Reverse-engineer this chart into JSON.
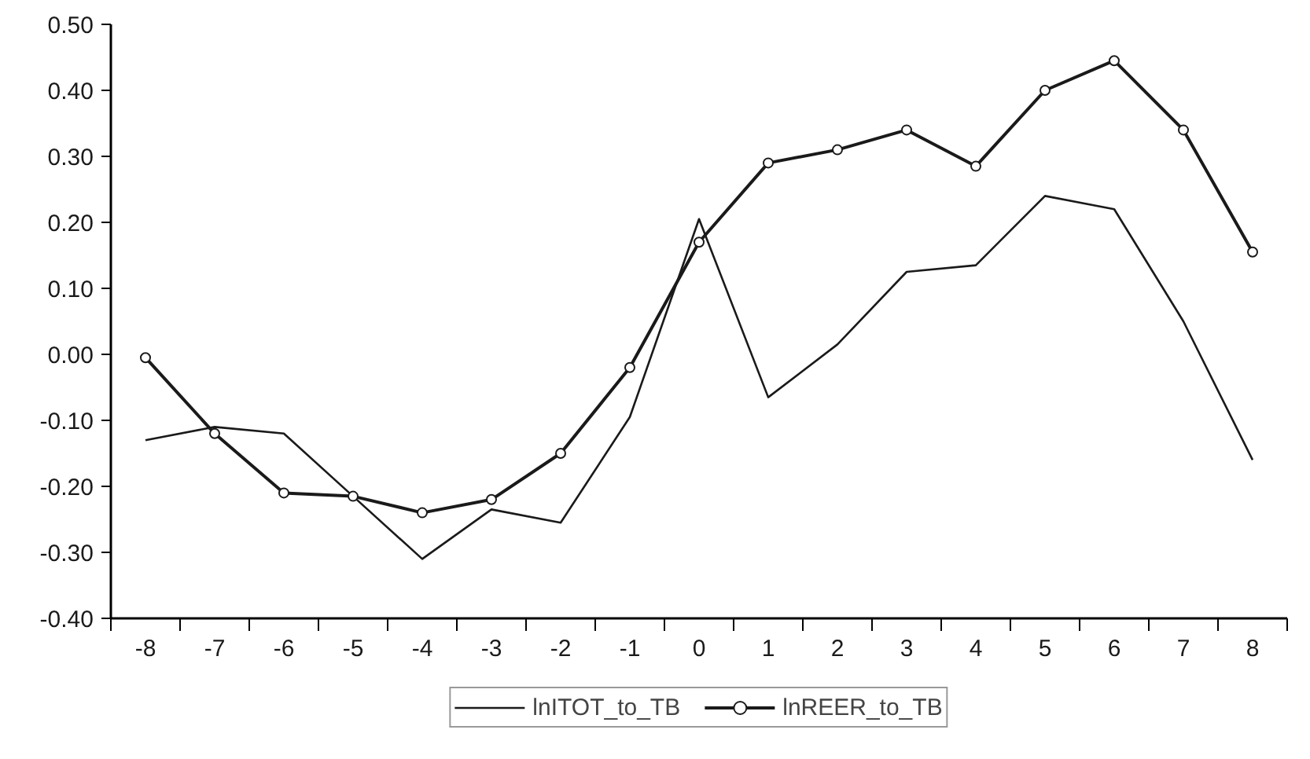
{
  "chart_data": {
    "type": "line",
    "x": [
      -8,
      -7,
      -6,
      -5,
      -4,
      -3,
      -2,
      -1,
      0,
      1,
      2,
      3,
      4,
      5,
      6,
      7,
      8
    ],
    "series": [
      {
        "name": "lnITOT_to_TB",
        "color": "#1a1a1a",
        "marker": "none",
        "values": [
          -0.13,
          -0.11,
          -0.12,
          -0.215,
          -0.31,
          -0.235,
          -0.255,
          -0.095,
          0.205,
          -0.065,
          0.015,
          0.125,
          0.135,
          0.24,
          0.22,
          0.05,
          -0.16
        ]
      },
      {
        "name": "lnREER_to_TB",
        "color": "#1a1a1a",
        "marker": "circle",
        "values": [
          -0.005,
          -0.12,
          -0.21,
          -0.215,
          -0.24,
          -0.22,
          -0.15,
          -0.02,
          0.17,
          0.29,
          0.31,
          0.34,
          0.285,
          0.4,
          0.445,
          0.34,
          0.155
        ]
      }
    ],
    "xlim": [
      -8.5,
      8.5
    ],
    "xticks": [
      -8,
      -7,
      -6,
      -5,
      -4,
      -3,
      -2,
      -1,
      0,
      1,
      2,
      3,
      4,
      5,
      6,
      7,
      8
    ],
    "ylim": [
      -0.4,
      0.5
    ],
    "yticks": [
      {
        "value": -0.4,
        "label": "-0.40"
      },
      {
        "value": -0.3,
        "label": "-0.30"
      },
      {
        "value": -0.2,
        "label": "-0.20"
      },
      {
        "value": -0.1,
        "label": "-0.10"
      },
      {
        "value": 0,
        "label": "0.00"
      },
      {
        "value": 0.1,
        "label": "0.10"
      },
      {
        "value": 0.2,
        "label": "0.20"
      },
      {
        "value": 0.3,
        "label": "0.30"
      },
      {
        "value": 0.4,
        "label": "0.40"
      },
      {
        "value": 0.5,
        "label": "0.50"
      }
    ],
    "grid": false,
    "legend": "bottom"
  }
}
